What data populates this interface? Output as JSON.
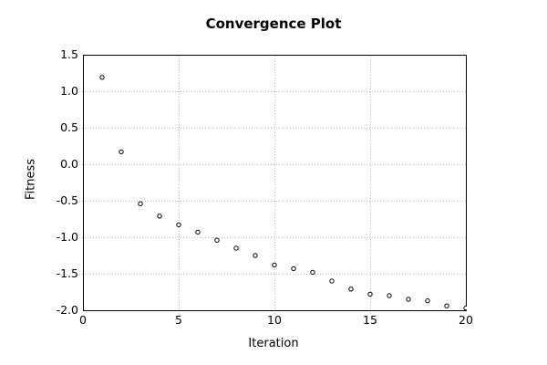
{
  "chart_data": {
    "type": "scatter",
    "title": "Convergence Plot",
    "xlabel": "Iteration",
    "ylabel": "Fitness",
    "x": [
      1,
      2,
      3,
      4,
      5,
      6,
      7,
      8,
      9,
      10,
      11,
      12,
      13,
      14,
      15,
      16,
      17,
      18,
      19,
      20
    ],
    "y": [
      1.19,
      0.17,
      -0.54,
      -0.71,
      -0.83,
      -0.93,
      -1.04,
      -1.15,
      -1.25,
      -1.38,
      -1.43,
      -1.48,
      -1.6,
      -1.71,
      -1.78,
      -1.8,
      -1.85,
      -1.87,
      -1.94,
      -1.97
    ],
    "xlim": [
      0,
      20
    ],
    "ylim": [
      -2.0,
      1.5
    ],
    "xticks": [
      0,
      5,
      10,
      15,
      20
    ],
    "xtick_labels": [
      "0",
      "5",
      "10",
      "15",
      "20"
    ],
    "yticks": [
      1.5,
      1.0,
      0.5,
      0.0,
      -0.5,
      -1.0,
      -1.5,
      -2.0
    ],
    "ytick_labels": [
      "1.5",
      "1.0",
      "0.5",
      "0.0",
      "-0.5",
      "-1.0",
      "-1.5",
      "-2.0"
    ],
    "grid": true,
    "grid_style": "dotted",
    "legend": false,
    "marker": "open-circle",
    "colors": {
      "background": "#ffffff",
      "axis": "#000000",
      "text": "#000000",
      "grid": "#bbbbbb",
      "marker_stroke": "#000000",
      "marker_fill": "#ffffff"
    }
  }
}
